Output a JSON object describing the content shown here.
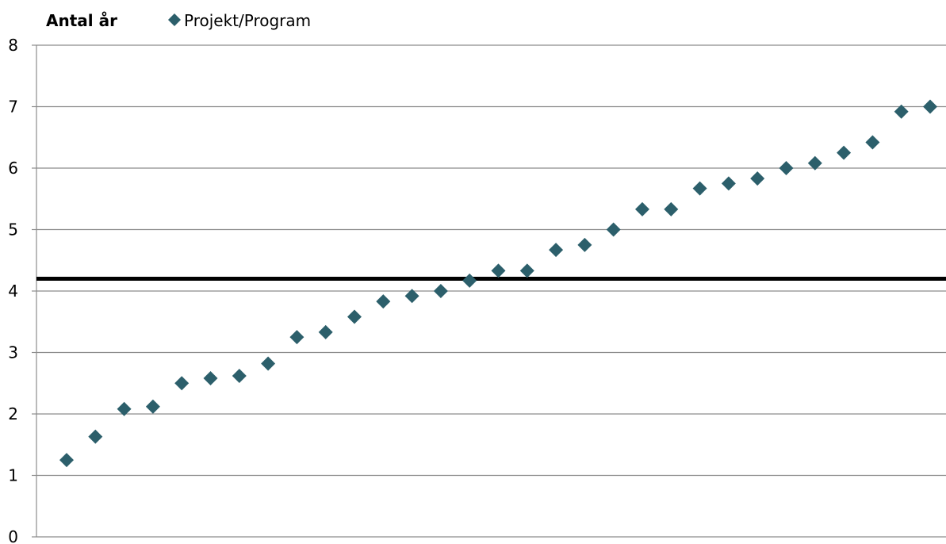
{
  "chart_data": {
    "type": "scatter",
    "title": "",
    "ylabel": "Antal år",
    "xlabel": "",
    "ylim": [
      0,
      8
    ],
    "y_ticks": [
      "0",
      "1",
      "2",
      "3",
      "4",
      "5",
      "6",
      "7",
      "8"
    ],
    "grid": "horizontal",
    "legend_position": "top",
    "series": [
      {
        "name": "Projekt/Program",
        "color": "#2c5f6b",
        "marker": "diamond",
        "x": [
          1,
          2,
          3,
          4,
          5,
          6,
          7,
          8,
          9,
          10,
          11,
          12,
          13,
          14,
          15,
          16,
          17,
          18,
          19,
          20,
          21,
          22,
          23,
          24,
          25,
          26,
          27,
          28,
          29,
          30,
          31
        ],
        "values": [
          1.25,
          1.63,
          2.08,
          2.12,
          2.5,
          2.58,
          2.62,
          2.82,
          3.25,
          3.33,
          3.58,
          3.83,
          3.92,
          4.0,
          4.17,
          4.33,
          4.33,
          4.67,
          4.75,
          5.0,
          5.33,
          5.33,
          5.67,
          5.75,
          5.83,
          6.0,
          6.08,
          6.25,
          6.42,
          6.92,
          7.0
        ]
      }
    ],
    "reference_line": {
      "y": 4.2,
      "color": "#000000"
    }
  }
}
